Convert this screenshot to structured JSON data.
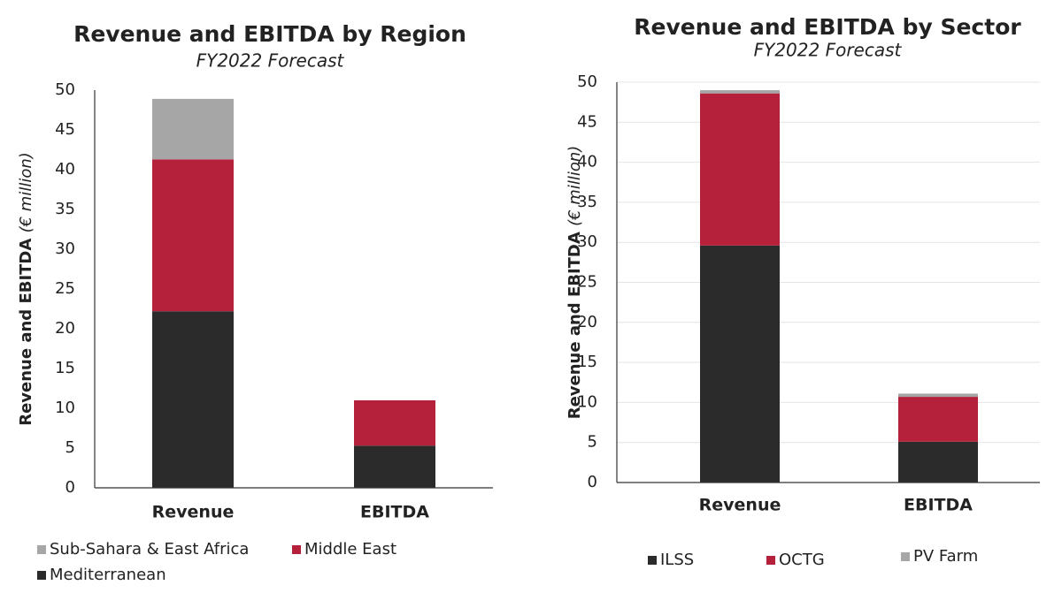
{
  "chart_data": [
    {
      "type": "bar",
      "stacked": true,
      "title": "Revenue and EBITDA by Region",
      "subtitle": "FY2022 Forecast",
      "ylabel": "Revenue and EBITDA",
      "ylabel_unit": "(€ million)",
      "categories": [
        "Revenue",
        "EBITDA"
      ],
      "series": [
        {
          "name": "Mediterranean",
          "color": "#2b2b2b",
          "values": [
            22.2,
            5.3
          ]
        },
        {
          "name": "Middle East",
          "color": "#b5213a",
          "values": [
            19.1,
            5.7
          ]
        },
        {
          "name": "Sub-Sahara & East Africa",
          "color": "#a6a6a6",
          "values": [
            7.6,
            0
          ]
        }
      ],
      "ylim": [
        0,
        50
      ],
      "yticks": [
        0,
        5,
        10,
        15,
        20,
        25,
        30,
        35,
        40,
        45,
        50
      ],
      "grid": false
    },
    {
      "type": "bar",
      "stacked": true,
      "title": "Revenue and EBITDA by Sector",
      "subtitle": "FY2022 Forecast",
      "ylabel": "Revenue and EBITDA",
      "ylabel_unit": "(€ million)",
      "categories": [
        "Revenue",
        "EBITDA"
      ],
      "series": [
        {
          "name": "ILSS",
          "color": "#2b2b2b",
          "values": [
            29.6,
            5.1
          ]
        },
        {
          "name": "OCTG",
          "color": "#b5213a",
          "values": [
            19.0,
            5.6
          ]
        },
        {
          "name": "PV Farm",
          "color": "#a6a6a6",
          "values": [
            0.4,
            0.4
          ]
        }
      ],
      "ylim": [
        0,
        50
      ],
      "yticks": [
        0,
        5,
        10,
        15,
        20,
        25,
        30,
        35,
        40,
        45,
        50
      ],
      "grid": true
    }
  ]
}
